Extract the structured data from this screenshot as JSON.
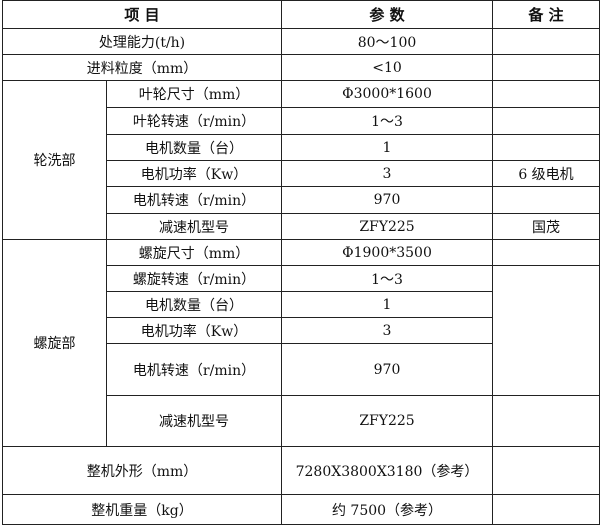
{
  "header": {
    "item": "项 目",
    "param": "参 数",
    "note": "备 注"
  },
  "general": [
    {
      "label": "处理能力(t/h)",
      "value": "80～100",
      "note": ""
    },
    {
      "label": "进料粒度（mm）",
      "value": "<10",
      "note": ""
    }
  ],
  "wheel": {
    "group": "轮洗部",
    "rows": [
      {
        "label": "叶轮尺寸（mm）",
        "value": "Φ3000*1600",
        "note": ""
      },
      {
        "label": "叶轮转速（r/min）",
        "value": "1～3",
        "note": ""
      },
      {
        "label": "电机数量（台）",
        "value": "1",
        "note": ""
      },
      {
        "label": "电机功率（Kw）",
        "value": "3",
        "note": "6 级电机"
      },
      {
        "label": "电机转速（r/min）",
        "value": "970",
        "note": ""
      },
      {
        "label": "减速机型号",
        "value": "ZFY225",
        "note": "国茂"
      }
    ]
  },
  "spiral": {
    "group": "螺旋部",
    "rows": [
      {
        "label": "螺旋尺寸（mm）",
        "value": "Φ1900*3500"
      },
      {
        "label": "螺旋转速（r/min）",
        "value": "1～3"
      },
      {
        "label": "电机数量（台）",
        "value": "1"
      },
      {
        "label": "电机功率（Kw）",
        "value": "3"
      },
      {
        "label": "电机转速（r/min）",
        "value": "970"
      },
      {
        "label": "减速机型号",
        "value": "ZFY225"
      }
    ]
  },
  "overall": [
    {
      "label": "整机外形（mm）",
      "value": "7280X3800X3180（参考）",
      "note": ""
    },
    {
      "label": "整机重量（kg）",
      "value": "约 7500（参考）",
      "note": ""
    }
  ]
}
